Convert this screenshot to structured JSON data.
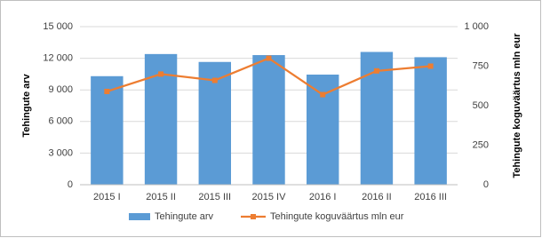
{
  "chart_data": {
    "type": "bar_line",
    "categories": [
      "2015 I",
      "2015 II",
      "2015 III",
      "2015 IV",
      "2016 I",
      "2016 II",
      "2016 III"
    ],
    "series": [
      {
        "name": "Tehingute arv",
        "type": "bar",
        "color": "#5b9bd5",
        "values": [
          10300,
          12400,
          11650,
          12300,
          10450,
          12600,
          12100
        ]
      },
      {
        "name": "Tehingute koguväärtus mln eur",
        "type": "line",
        "axis": "y2",
        "color": "#ed7d31",
        "values": [
          590,
          700,
          660,
          800,
          570,
          720,
          750
        ]
      }
    ],
    "ylabel": "Tehingute arv",
    "y2label": "Tehingute koguväärtus mln eur",
    "ylim": [
      0,
      15000
    ],
    "yticks": [
      0,
      {
        "value": 3000,
        "label": "3 000"
      },
      {
        "value": 6000,
        "label": "6 000"
      },
      {
        "value": 9000,
        "label": "9 000"
      },
      {
        "value": 12000,
        "label": "12 000"
      },
      {
        "value": 15000,
        "label": "15 000"
      }
    ],
    "y2lim": [
      0,
      1000
    ],
    "y2ticks": [
      0,
      250,
      500,
      750,
      {
        "value": 1000,
        "label": "1 000"
      }
    ],
    "grid": true,
    "legend": "bottom"
  }
}
